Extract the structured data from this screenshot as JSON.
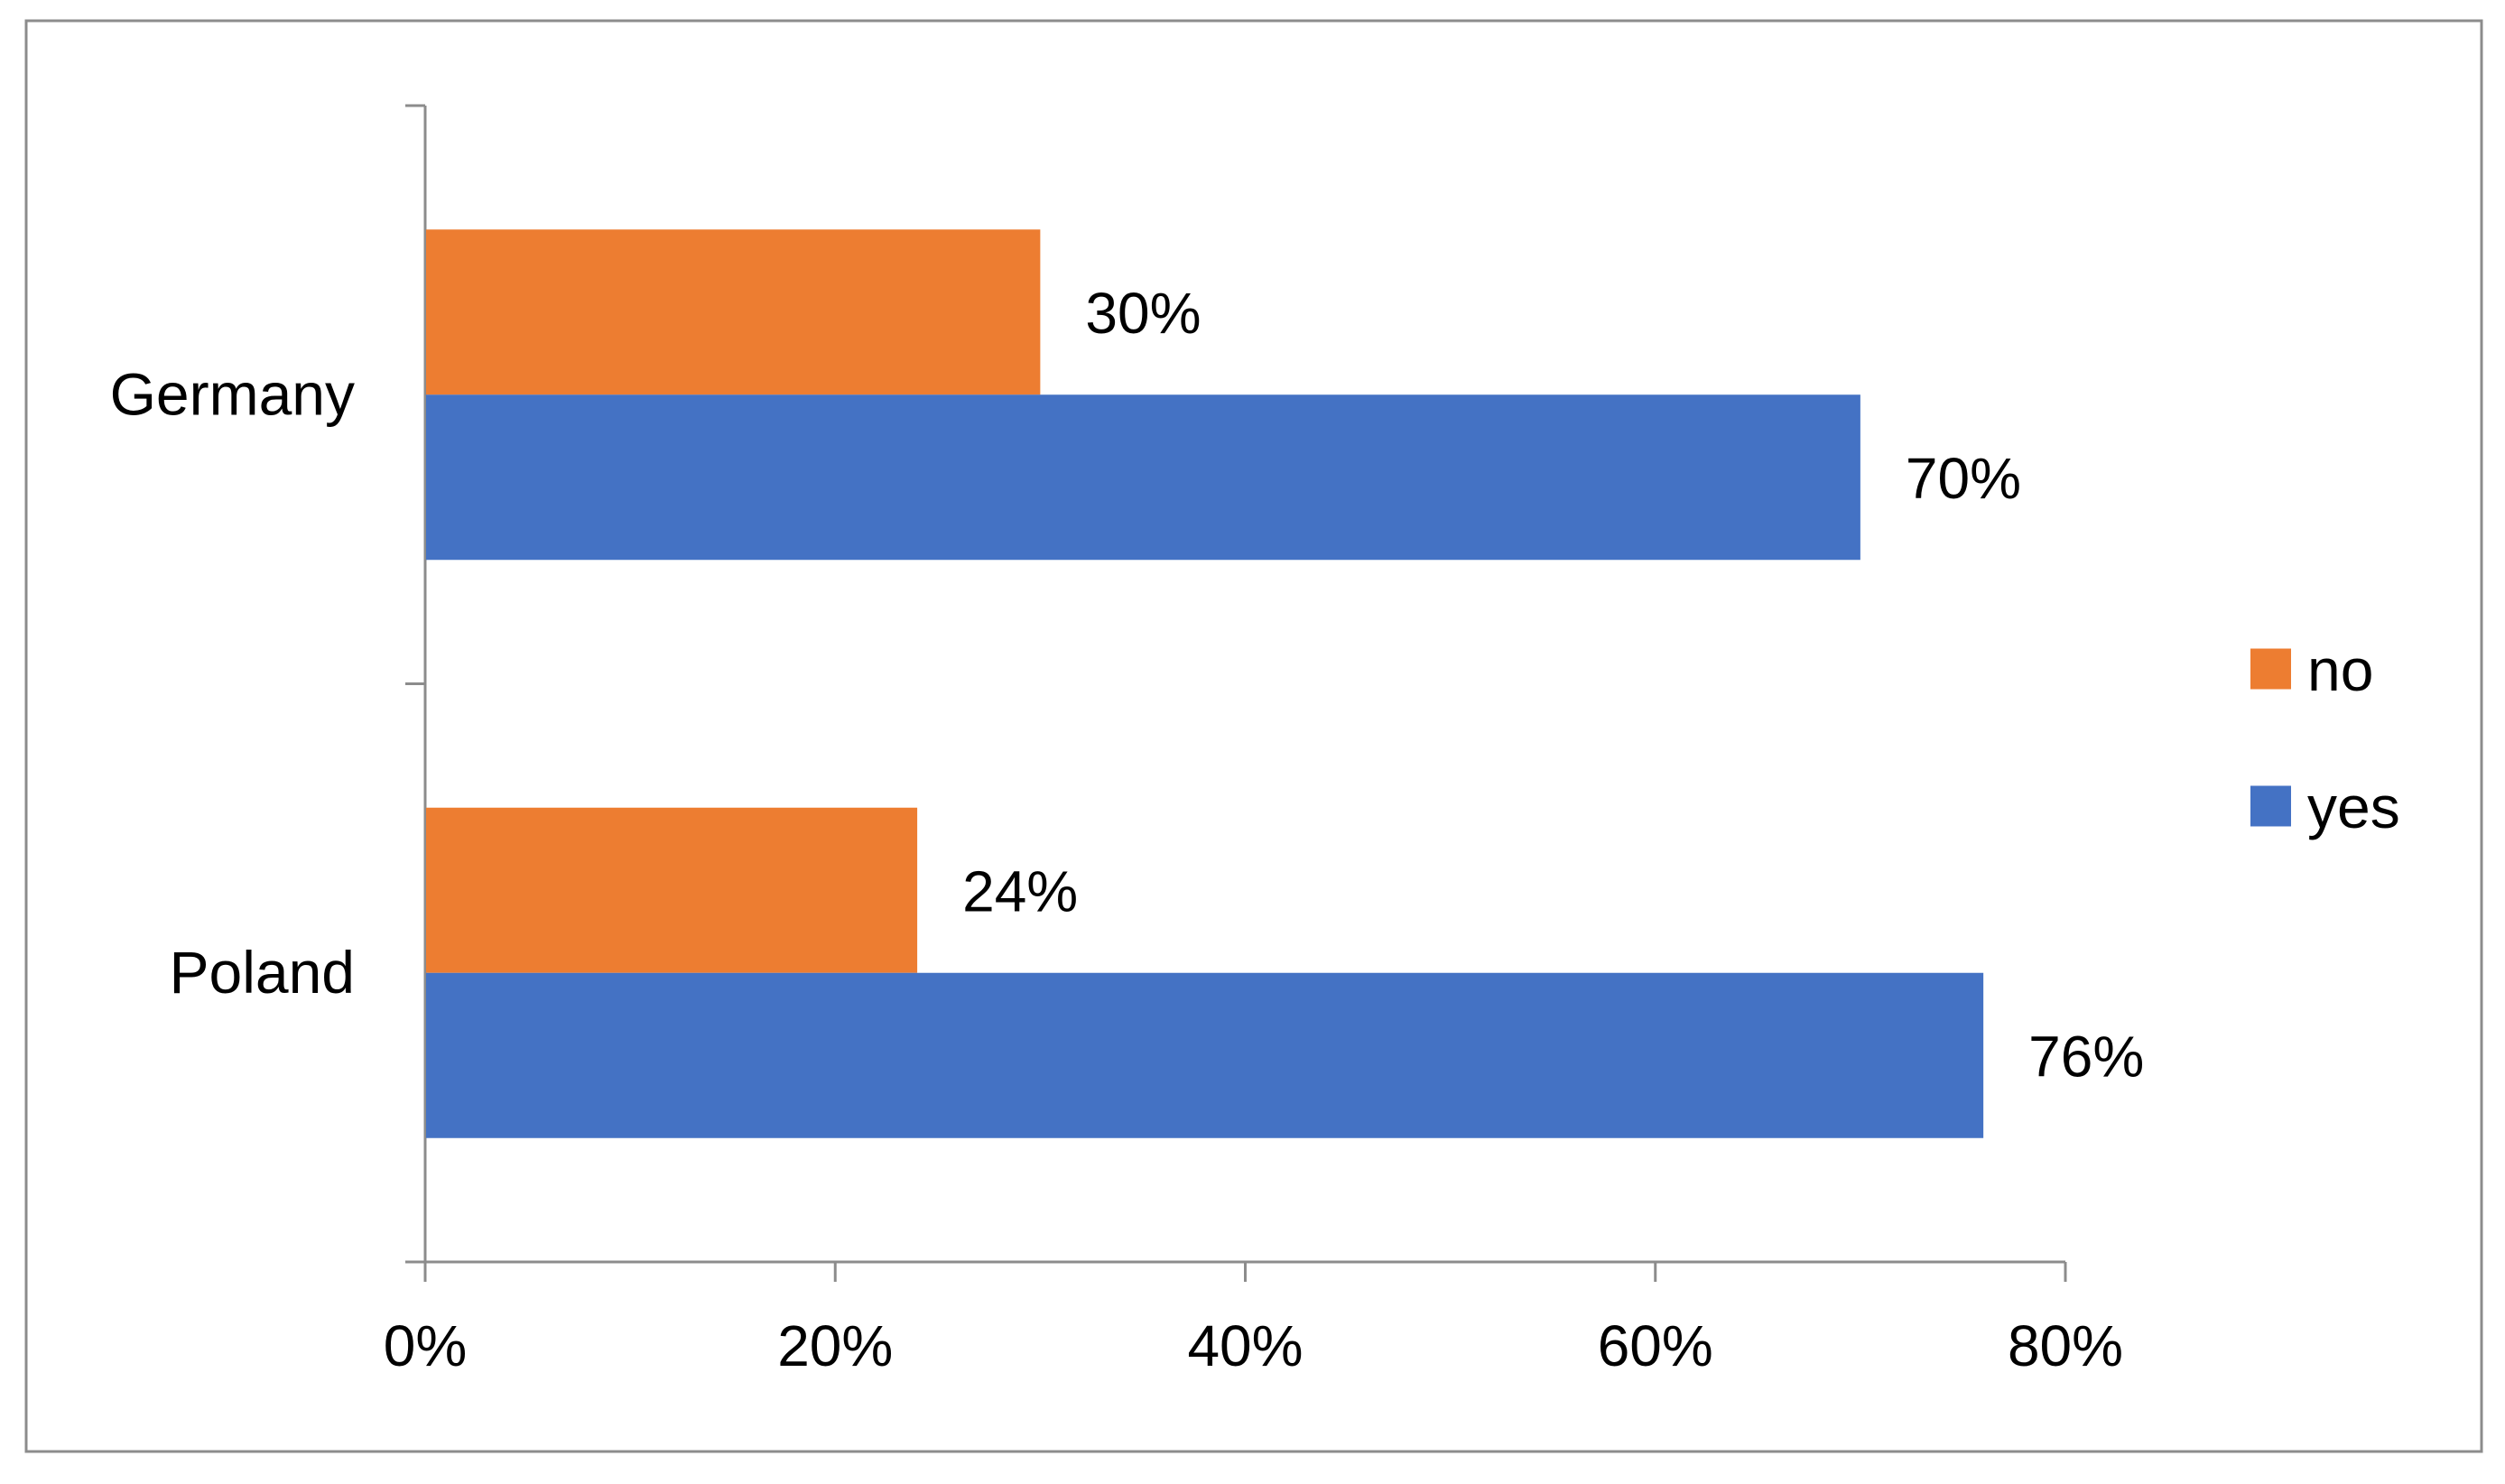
{
  "chart_data": {
    "type": "bar",
    "orientation": "horizontal",
    "title": "",
    "xlabel": "",
    "ylabel": "",
    "categories": [
      "Germany",
      "Poland"
    ],
    "series": [
      {
        "name": "no",
        "color": "#ED7D31",
        "values": [
          30,
          24
        ],
        "labels": [
          "30%",
          "24%"
        ]
      },
      {
        "name": "yes",
        "color": "#4472C4",
        "values": [
          70,
          76
        ],
        "labels": [
          "70%",
          "76%"
        ]
      }
    ],
    "xlim": [
      0,
      80
    ],
    "xticks": [
      0,
      20,
      40,
      60,
      80
    ],
    "xtick_labels": [
      "0%",
      "20%",
      "40%",
      "60%",
      "80%"
    ],
    "unit": "%",
    "grid": false,
    "legend": {
      "position": "right",
      "order": [
        "no",
        "yes"
      ]
    }
  }
}
